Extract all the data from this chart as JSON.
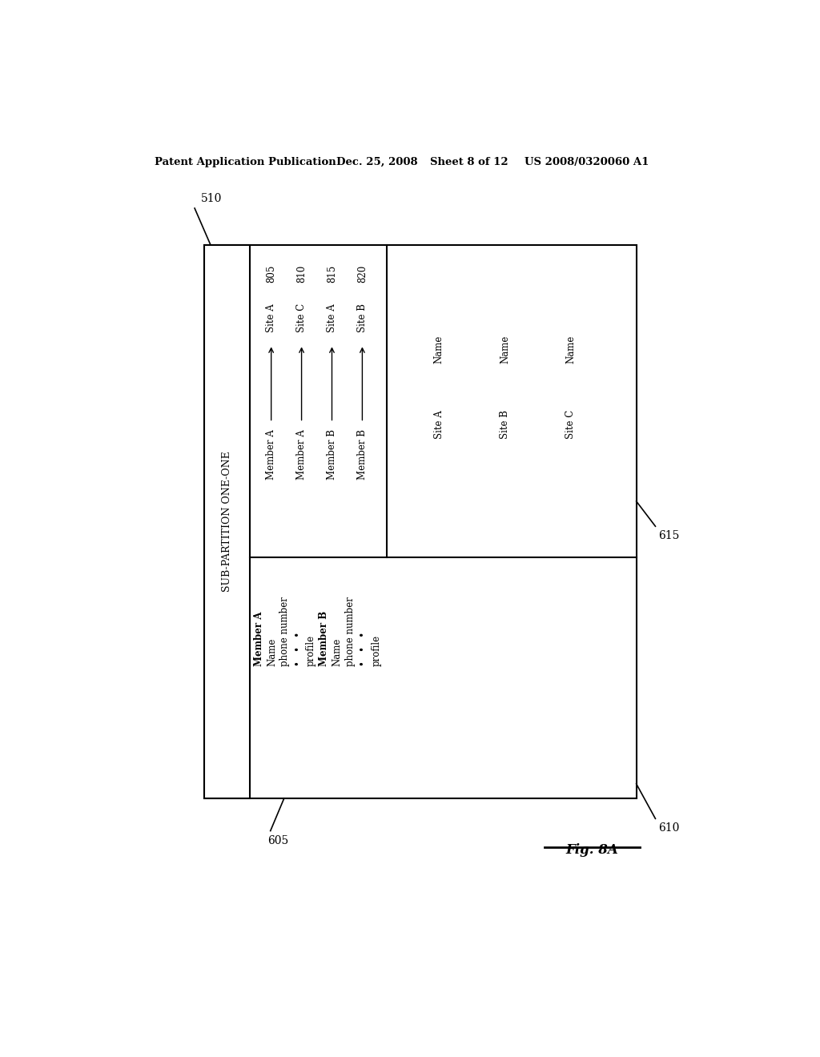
{
  "bg_color": "#ffffff",
  "header_text": "Patent Application Publication",
  "header_date": "Dec. 25, 2008",
  "header_sheet": "Sheet 8 of 12",
  "header_patent": "US 2008/0320060 A1",
  "fig_label": "Fig. 8A",
  "label_510": "510",
  "label_605": "605",
  "label_610": "610",
  "label_615": "615",
  "sub_partition_label": "SUB-PARTITION ONE-ONE",
  "member_data": [
    [
      "Member A",
      true
    ],
    [
      "Name",
      false
    ],
    [
      "phone number",
      false
    ],
    [
      "•   •   •",
      false
    ],
    [
      "profile",
      false
    ],
    [
      "Member B",
      true
    ],
    [
      "Name",
      false
    ],
    [
      "phone number",
      false
    ],
    [
      "•   •   •",
      false
    ],
    [
      "profile",
      false
    ]
  ],
  "mapping_data": [
    [
      "Member A",
      "Site A",
      "805"
    ],
    [
      "Member A",
      "Site C",
      "810"
    ],
    [
      "Member B",
      "Site A",
      "815"
    ],
    [
      "Member B",
      "Site B",
      "820"
    ]
  ],
  "site_data": [
    [
      "Site A",
      "Name"
    ],
    [
      "Site B",
      "Name"
    ],
    [
      "Site C",
      "Name"
    ]
  ]
}
